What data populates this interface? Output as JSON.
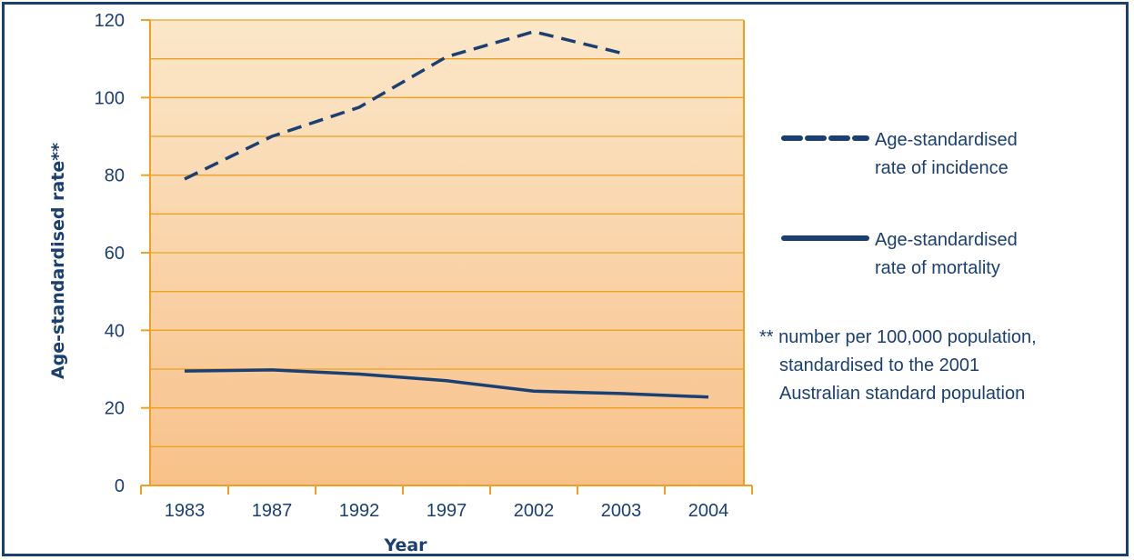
{
  "chart_data": {
    "type": "line",
    "categories": [
      "1983",
      "1987",
      "1992",
      "1997",
      "2002",
      "2003",
      "2004"
    ],
    "series": [
      {
        "name": "Age-standardised rate of incidence",
        "legend_lines": [
          "Age-standardised",
          "rate of incidence"
        ],
        "style": "dashed",
        "values": [
          79,
          90,
          97.5,
          110.5,
          117,
          111.5,
          null
        ]
      },
      {
        "name": "Age-standardised rate of mortality",
        "legend_lines": [
          "Age-standardised",
          "rate of mortality"
        ],
        "style": "solid",
        "values": [
          29.5,
          29.8,
          28.7,
          27,
          24.3,
          23.7,
          22.8
        ]
      }
    ],
    "xlabel": "Year",
    "ylabel": "Age-standardised rate**",
    "ylim": [
      0,
      120
    ],
    "yticks": [
      0,
      20,
      40,
      60,
      80,
      100,
      120
    ],
    "grid": true,
    "legend_position": "right",
    "footnote_lines": [
      "** number per 100,000 population,",
      "standardised to the 2001",
      "Australian standard population"
    ],
    "colors": {
      "line": "#1a3f73",
      "grid": "#f0a020",
      "plot_top": "#fbe7c9",
      "plot_bottom": "#f8c18a",
      "frame": "#1a3f73"
    }
  }
}
